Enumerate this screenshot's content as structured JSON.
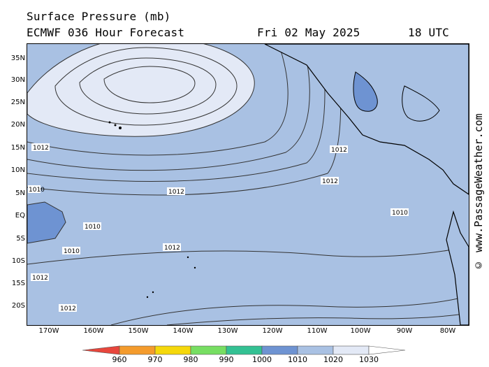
{
  "header": {
    "title": "Surface Pressure (mb)",
    "model_line": "ECMWF 036 Hour Forecast",
    "date": "Fri 02 May 2025",
    "time": "18 UTC"
  },
  "side_credit": "© www.PassageWeather.com",
  "map": {
    "lat_labels": [
      "35N",
      "30N",
      "25N",
      "20N",
      "15N",
      "10N",
      "5N",
      "EQ",
      "5S",
      "10S",
      "15S",
      "20S"
    ],
    "lon_labels": [
      "170W",
      "160W",
      "150W",
      "140W",
      "130W",
      "120W",
      "110W",
      "100W",
      "90W",
      "80W"
    ],
    "isobar_labels": [
      "1012",
      "1010",
      "1012",
      "1012",
      "1012",
      "1010",
      "1012",
      "1010",
      "1012",
      "1010",
      "1012"
    ],
    "colors": {
      "ocean_base": "#a9c1e3",
      "high_inner": "#e3e9f6",
      "low_region": "#6e93d2",
      "land_line": "#000000"
    }
  },
  "colorbar": {
    "labels": [
      "960",
      "970",
      "980",
      "990",
      "1000",
      "1010",
      "1020",
      "1030"
    ],
    "colors": [
      "#e8463c",
      "#f49b2c",
      "#f5d80b",
      "#77de62",
      "#33c193",
      "#6e93d2",
      "#a9c1e3",
      "#e3e9f6"
    ]
  }
}
